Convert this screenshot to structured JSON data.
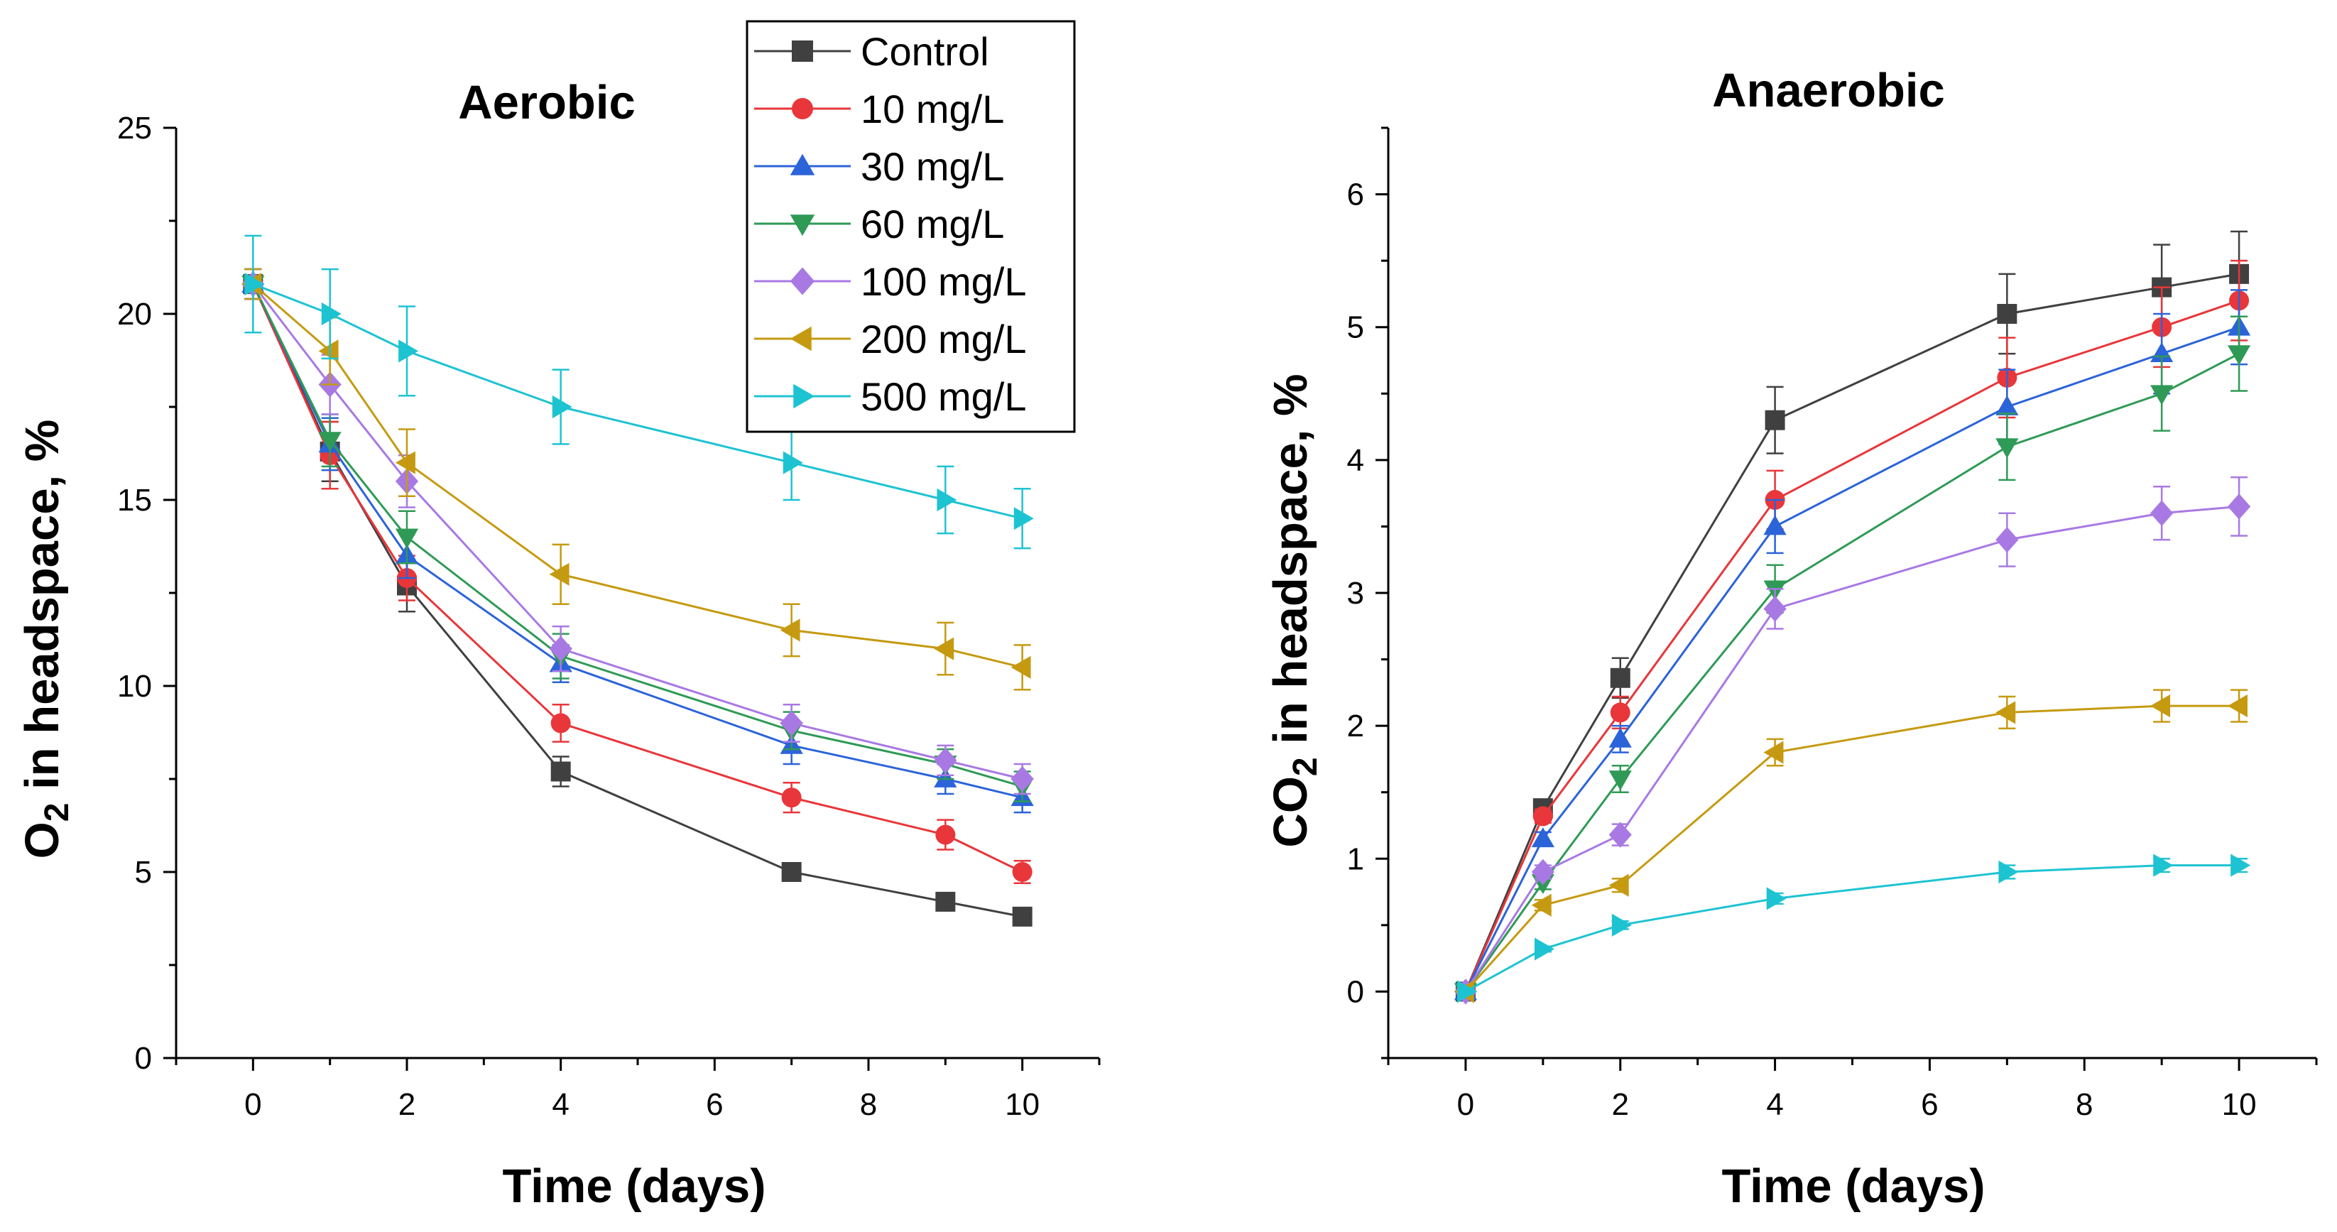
{
  "chart_data": [
    {
      "type": "line",
      "title": "Aerobic",
      "xlabel": "Time (days)",
      "ylabel": {
        "main": "O",
        "sub": "2",
        "rest": " in headspace, %"
      },
      "xlim": [
        -1,
        11
      ],
      "ylim": [
        0,
        25
      ],
      "xticks": [
        0,
        2,
        4,
        6,
        8,
        10
      ],
      "yticks": [
        0,
        5,
        10,
        15,
        20,
        25
      ],
      "x": [
        0,
        1,
        2,
        4,
        7,
        9,
        10
      ],
      "series": [
        {
          "name": "Control",
          "marker": "square",
          "values": [
            20.8,
            16.3,
            12.7,
            7.7,
            5.0,
            4.2,
            3.8
          ],
          "errors": [
            0.4,
            0.8,
            0.7,
            0.4,
            0.2,
            0.2,
            0.2
          ]
        },
        {
          "name": "10 mg/L",
          "marker": "circle",
          "values": [
            20.8,
            16.2,
            12.9,
            9.0,
            7.0,
            6.0,
            5.0
          ],
          "errors": [
            0.4,
            0.9,
            0.6,
            0.5,
            0.4,
            0.4,
            0.3
          ]
        },
        {
          "name": "30 mg/L",
          "marker": "triangle-up",
          "values": [
            20.8,
            16.5,
            13.5,
            10.6,
            8.4,
            7.5,
            7.0
          ],
          "errors": [
            0.4,
            0.7,
            0.6,
            0.5,
            0.5,
            0.4,
            0.4
          ]
        },
        {
          "name": "60 mg/L",
          "marker": "triangle-down",
          "values": [
            20.8,
            16.6,
            14.0,
            10.8,
            8.8,
            7.9,
            7.3
          ],
          "errors": [
            0.4,
            0.7,
            0.7,
            0.6,
            0.5,
            0.4,
            0.4
          ]
        },
        {
          "name": "100 mg/L",
          "marker": "diamond",
          "values": [
            20.8,
            18.1,
            15.5,
            11.0,
            9.0,
            8.0,
            7.5
          ],
          "errors": [
            0.4,
            0.8,
            0.7,
            0.6,
            0.5,
            0.4,
            0.4
          ]
        },
        {
          "name": "200 mg/L",
          "marker": "triangle-left",
          "values": [
            20.8,
            19.0,
            16.0,
            13.0,
            11.5,
            11.0,
            10.5
          ],
          "errors": [
            0.4,
            0.9,
            0.9,
            0.8,
            0.7,
            0.7,
            0.6
          ]
        },
        {
          "name": "500 mg/L",
          "marker": "triangle-right",
          "values": [
            20.8,
            20.0,
            19.0,
            17.5,
            16.0,
            15.0,
            14.5
          ],
          "errors": [
            1.3,
            1.2,
            1.2,
            1.0,
            1.0,
            0.9,
            0.8
          ]
        }
      ],
      "legend": "top-right"
    },
    {
      "type": "line",
      "title": "Anaerobic",
      "xlabel": "Time (days)",
      "ylabel": {
        "main": "CO",
        "sub": "2",
        "rest": " in headspace, %"
      },
      "xlim": [
        -1,
        11
      ],
      "ylim": [
        -0.5,
        6.5
      ],
      "xticks": [
        0,
        2,
        4,
        6,
        8,
        10
      ],
      "yticks": [
        0,
        1,
        2,
        3,
        4,
        5,
        6
      ],
      "x": [
        0,
        1,
        2,
        4,
        7,
        9,
        10
      ],
      "series": [
        {
          "name": "Control",
          "marker": "square",
          "values": [
            0,
            1.38,
            2.36,
            4.3,
            5.1,
            5.3,
            5.4
          ],
          "errors": [
            0.03,
            0.05,
            0.15,
            0.25,
            0.3,
            0.32,
            0.32
          ]
        },
        {
          "name": "10 mg/L",
          "marker": "circle",
          "values": [
            0,
            1.32,
            2.1,
            3.7,
            4.62,
            5.0,
            5.2
          ],
          "errors": [
            0.03,
            0.05,
            0.12,
            0.22,
            0.3,
            0.3,
            0.3
          ]
        },
        {
          "name": "30 mg/L",
          "marker": "triangle-up",
          "values": [
            0,
            1.15,
            1.9,
            3.5,
            4.4,
            4.8,
            5.0
          ],
          "errors": [
            0.03,
            0.05,
            0.1,
            0.2,
            0.28,
            0.3,
            0.28
          ]
        },
        {
          "name": "60 mg/L",
          "marker": "triangle-down",
          "values": [
            0,
            0.82,
            1.6,
            3.03,
            4.1,
            4.5,
            4.8
          ],
          "errors": [
            0.03,
            0.05,
            0.1,
            0.18,
            0.25,
            0.28,
            0.28
          ]
        },
        {
          "name": "100 mg/L",
          "marker": "diamond",
          "values": [
            0,
            0.9,
            1.18,
            2.88,
            3.4,
            3.6,
            3.65
          ],
          "errors": [
            0.03,
            0.05,
            0.08,
            0.15,
            0.2,
            0.2,
            0.22
          ]
        },
        {
          "name": "200 mg/L",
          "marker": "triangle-left",
          "values": [
            0,
            0.65,
            0.8,
            1.8,
            2.1,
            2.15,
            2.15
          ],
          "errors": [
            0.03,
            0.04,
            0.05,
            0.1,
            0.12,
            0.12,
            0.12
          ]
        },
        {
          "name": "500 mg/L",
          "marker": "triangle-right",
          "values": [
            0,
            0.32,
            0.5,
            0.7,
            0.9,
            0.95,
            0.95
          ],
          "errors": [
            0.02,
            0.02,
            0.03,
            0.04,
            0.05,
            0.05,
            0.05
          ]
        }
      ]
    }
  ],
  "colors": {
    "Control": "#404040",
    "10 mg/L": "#e8363a",
    "30 mg/L": "#2b63d9",
    "60 mg/L": "#2f9a56",
    "100 mg/L": "#a879e3",
    "200 mg/L": "#c59a10",
    "500 mg/L": "#1ec3d2"
  }
}
